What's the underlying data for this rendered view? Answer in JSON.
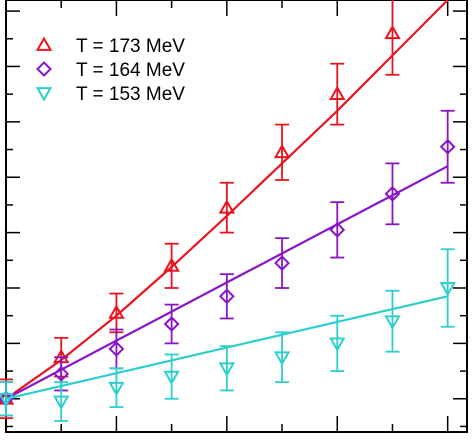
{
  "chart_data": {
    "type": "scatter",
    "title": "",
    "xlabel": "",
    "ylabel": "",
    "xlim": [
      0,
      8.35
    ],
    "ylim": [
      -0.6,
      7.2
    ],
    "xticks_major": [
      0,
      2,
      4,
      6,
      8
    ],
    "xticks_minor": [
      1,
      3,
      5,
      7
    ],
    "yticks_major": [
      0,
      1,
      2,
      3,
      4,
      5,
      6,
      7
    ],
    "yticks_minor": [
      -0.5,
      0.5,
      1.5,
      2.5,
      3.5,
      4.5,
      5.5,
      6.5
    ],
    "tick_labels_shown": false,
    "grid": false,
    "legend_position": "top-left",
    "series": [
      {
        "name": "T = 173 MeV",
        "color": "#e8141e",
        "marker": "triangle-up",
        "x": [
          0,
          1,
          2,
          3,
          4,
          5,
          6,
          7
        ],
        "y": [
          0.0,
          0.75,
          1.55,
          2.4,
          3.45,
          4.45,
          5.5,
          6.6
        ],
        "err": [
          0.35,
          0.35,
          0.35,
          0.4,
          0.45,
          0.5,
          0.55,
          0.75
        ],
        "fit_x": [
          0,
          1,
          2,
          3,
          4,
          5,
          6,
          7,
          8
        ],
        "fit_y": [
          0.0,
          0.7,
          1.5,
          2.38,
          3.3,
          4.25,
          5.2,
          6.2,
          7.2
        ]
      },
      {
        "name": "T = 164 MeV",
        "color": "#8a14c8",
        "marker": "diamond",
        "x": [
          0,
          1,
          2,
          3,
          4,
          5,
          6,
          7,
          8
        ],
        "y": [
          0.0,
          0.45,
          0.9,
          1.35,
          1.85,
          2.45,
          3.05,
          3.7,
          4.55
        ],
        "err": [
          0.3,
          0.3,
          0.35,
          0.35,
          0.4,
          0.45,
          0.5,
          0.55,
          0.65
        ],
        "fit_x": [
          0,
          8
        ],
        "fit_y": [
          0.0,
          4.2
        ]
      },
      {
        "name": "T = 153 MeV",
        "color": "#2ccfcc",
        "marker": "triangle-down",
        "x": [
          0,
          1,
          2,
          3,
          4,
          5,
          6,
          7,
          8
        ],
        "y": [
          0.0,
          -0.05,
          0.2,
          0.4,
          0.55,
          0.75,
          1.0,
          1.4,
          2.0
        ],
        "err": [
          0.3,
          0.35,
          0.35,
          0.4,
          0.4,
          0.45,
          0.5,
          0.55,
          0.7
        ],
        "fit_x": [
          0,
          8
        ],
        "fit_y": [
          0.0,
          1.85
        ]
      }
    ]
  }
}
